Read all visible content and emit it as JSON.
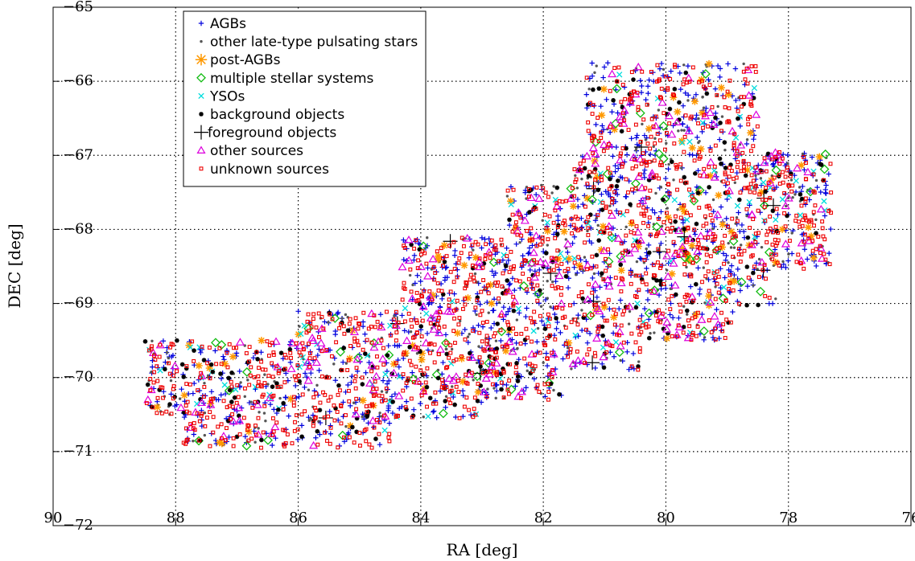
{
  "chart_data": {
    "type": "scatter",
    "title": "",
    "xlabel": "RA [deg]",
    "ylabel": "DEC [deg]",
    "xlim": [
      90,
      76
    ],
    "ylim": [
      -72,
      -65
    ],
    "x_reversed": true,
    "grid": true,
    "legend_position": "top-left",
    "x_ticks": [
      {
        "value": 90,
        "label": "90"
      },
      {
        "value": 88,
        "label": "88"
      },
      {
        "value": 86,
        "label": "86"
      },
      {
        "value": 84,
        "label": "84"
      },
      {
        "value": 82,
        "label": "82"
      },
      {
        "value": 80,
        "label": "80"
      },
      {
        "value": 78,
        "label": "78"
      },
      {
        "value": 76,
        "label": "76"
      }
    ],
    "y_ticks": [
      {
        "value": -72,
        "label": "−72"
      },
      {
        "value": -71,
        "label": "−71"
      },
      {
        "value": -70,
        "label": "−70"
      },
      {
        "value": -69,
        "label": "−69"
      },
      {
        "value": -68,
        "label": "−68"
      },
      {
        "value": -67,
        "label": "−67"
      },
      {
        "value": -66,
        "label": "−66"
      },
      {
        "value": -65,
        "label": "−65"
      }
    ],
    "series": [
      {
        "name": "AGBs",
        "marker": "plus",
        "color": "#0000dd",
        "weight": 0.3,
        "points": [
          [
            87.3,
            -70.3
          ],
          [
            85.0,
            -70.3
          ],
          [
            84.3,
            -70.0
          ],
          [
            83.0,
            -69.6
          ],
          [
            81.5,
            -69.0
          ],
          [
            80.4,
            -68.4
          ],
          [
            79.5,
            -67.0
          ],
          [
            80.2,
            -66.0
          ],
          [
            78.0,
            -67.8
          ],
          [
            86.2,
            -70.7
          ],
          [
            82.6,
            -70.1
          ],
          [
            82.0,
            -68.3
          ]
        ]
      },
      {
        "name": "other late-type pulsating stars",
        "marker": "dot",
        "color": "#555555",
        "weight": 0.1,
        "points": [
          [
            83.0,
            -69.9
          ],
          [
            82.0,
            -69.8
          ],
          [
            81.6,
            -69.6
          ],
          [
            84.5,
            -70.3
          ],
          [
            86.0,
            -70.5
          ],
          [
            83.7,
            -69.3
          ]
        ]
      },
      {
        "name": "post-AGBs",
        "marker": "asterisk",
        "color": "#ff9900",
        "weight": 0.03,
        "points": [
          [
            88.3,
            -70.4
          ],
          [
            86.6,
            -69.5
          ],
          [
            83.4,
            -69.4
          ],
          [
            79.9,
            -68.6
          ],
          [
            79.3,
            -68.9
          ],
          [
            78.1,
            -68.0
          ]
        ]
      },
      {
        "name": "multiple stellar systems",
        "marker": "diamond",
        "color": "#11bb11",
        "weight": 0.02,
        "points": [
          [
            85.4,
            -69.2
          ],
          [
            79.5,
            -68.4
          ],
          [
            78.2,
            -67.2
          ],
          [
            80.8,
            -66.1
          ]
        ]
      },
      {
        "name": "YSOs",
        "marker": "x",
        "color": "#00dddd",
        "weight": 0.03,
        "points": [
          [
            87.2,
            -70.1
          ],
          [
            85.9,
            -69.3
          ],
          [
            84.5,
            -69.3
          ],
          [
            80.7,
            -67.8
          ],
          [
            81.8,
            -67.6
          ]
        ]
      },
      {
        "name": "background objects",
        "marker": "asterisk-small",
        "color": "#000000",
        "weight": 0.07,
        "points": [
          [
            87.0,
            -70.8
          ],
          [
            85.3,
            -69.9
          ],
          [
            82.0,
            -68.5
          ],
          [
            80.2,
            -67.3
          ],
          [
            78.8,
            -67.6
          ],
          [
            80.8,
            -66.0
          ]
        ]
      },
      {
        "name": "foreground objects",
        "marker": "plus-big",
        "color": "#000000",
        "weight": 0.004,
        "points": [
          [
            80.1,
            -68.3
          ],
          [
            81.2,
            -69.8
          ],
          [
            79.7,
            -68.1
          ]
        ]
      },
      {
        "name": "other sources",
        "marker": "triangle",
        "color": "#dd00dd",
        "weight": 0.07,
        "points": [
          [
            85.7,
            -69.8
          ],
          [
            84.4,
            -69.3
          ],
          [
            83.7,
            -69.4
          ],
          [
            80.9,
            -66.6
          ],
          [
            81.6,
            -68.2
          ],
          [
            79.2,
            -67.3
          ]
        ]
      },
      {
        "name": "unknown sources",
        "marker": "square",
        "color": "#ee0000",
        "weight": 0.376,
        "points": [
          [
            87.6,
            -70.0
          ],
          [
            86.8,
            -70.1
          ],
          [
            85.5,
            -70.0
          ],
          [
            84.4,
            -69.5
          ],
          [
            83.0,
            -69.1
          ],
          [
            81.3,
            -67.9
          ],
          [
            79.6,
            -66.5
          ],
          [
            79.0,
            -67.5
          ],
          [
            78.0,
            -67.4
          ],
          [
            80.5,
            -68.9
          ]
        ]
      }
    ]
  }
}
